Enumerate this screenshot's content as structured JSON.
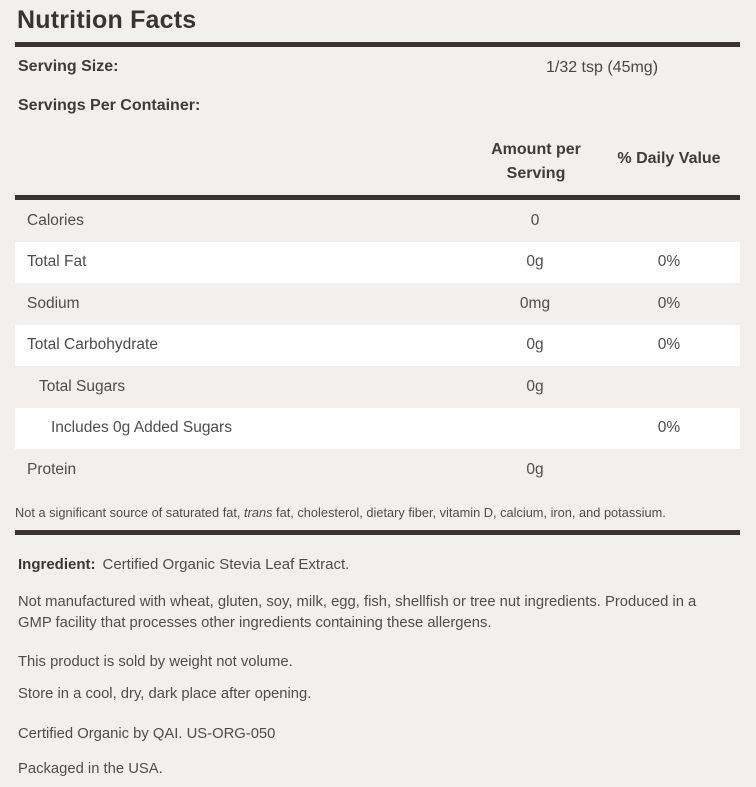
{
  "label": {
    "title": "Nutrition Facts",
    "serving_size": {
      "label": "Serving Size:",
      "value": "1/32 tsp (45mg)"
    },
    "servings_per_container": {
      "label": "Servings Per Container:"
    },
    "columns": {
      "amount_line1": "Amount per",
      "amount_line2": "Serving",
      "daily_value": "% Daily Value"
    },
    "rows": [
      {
        "name": "Calories",
        "amount": "0",
        "dv": ""
      },
      {
        "name": "Total Fat",
        "amount": "0g",
        "dv": "0%"
      },
      {
        "name": "Sodium",
        "amount": "0mg",
        "dv": "0%"
      },
      {
        "name": "Total Carbohydrate",
        "amount": "0g",
        "dv": "0%"
      },
      {
        "name": "Total Sugars",
        "amount": "0g",
        "dv": ""
      },
      {
        "name": "Includes 0g Added Sugars",
        "amount": "",
        "dv": "0%"
      },
      {
        "name": "Protein",
        "amount": "0g",
        "dv": ""
      }
    ],
    "footnote": {
      "prefix": "Not a significant source of saturated fat, ",
      "italic": "trans",
      "suffix": " fat, cholesterol, dietary fiber, vitamin D, calcium, iron, and potassium."
    },
    "ingredient": {
      "label": "Ingredient:",
      "value": "Certified Organic Stevia Leaf Extract."
    },
    "paragraphs": [
      "Not manufactured with wheat, gluten, soy, milk, egg, fish, shellfish or tree nut ingredients. Produced in a GMP facility that processes other ingredients containing these allergens.",
      "This product is sold by weight not volume.",
      "Store in a cool, dry, dark place after opening.",
      "Certified Organic by QAI. US-ORG-050",
      "Packaged in the USA."
    ]
  },
  "colors": {
    "background": "#f1f0ee",
    "row_white": "#ffffff",
    "dark_rule": "#393430",
    "heading_text": "#3f3b39",
    "body_text": "#4e4c4c"
  }
}
